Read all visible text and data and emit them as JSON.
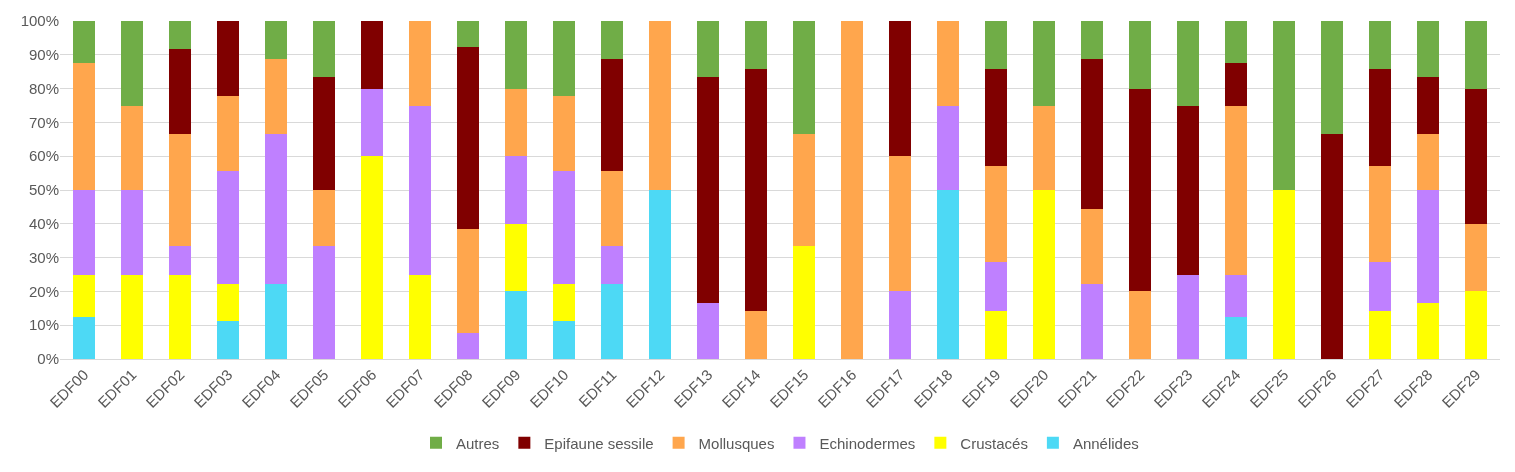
{
  "chart_data": {
    "type": "bar",
    "stacked": true,
    "categories": [
      "EDF00",
      "EDF01",
      "EDF02",
      "EDF03",
      "EDF04",
      "EDF05",
      "EDF06",
      "EDF07",
      "EDF08",
      "EDF09",
      "EDF10",
      "EDF11",
      "EDF12",
      "EDF13",
      "EDF14",
      "EDF15",
      "EDF16",
      "EDF17",
      "EDF18",
      "EDF19",
      "EDF20",
      "EDF21",
      "EDF22",
      "EDF23",
      "EDF24",
      "EDF25",
      "EDF26",
      "EDF27",
      "EDF28",
      "EDF29"
    ],
    "series": [
      {
        "name": "Annélides",
        "color": "#4dd9f5",
        "values": [
          12.5,
          0,
          0,
          11.1,
          22.2,
          0,
          0,
          0,
          0,
          20,
          11.1,
          22.2,
          50,
          0,
          0,
          0,
          0,
          0,
          50,
          0,
          0,
          0,
          0,
          0,
          12.5,
          0,
          0,
          0,
          0,
          0
        ]
      },
      {
        "name": "Crustacés",
        "color": "#ffff00",
        "values": [
          12.5,
          25,
          25,
          11.1,
          0,
          0,
          60,
          25,
          0,
          20,
          11.1,
          0,
          0,
          0,
          0,
          33.3,
          0,
          0,
          0,
          14.3,
          50,
          0,
          0,
          0,
          0,
          50,
          0,
          14.3,
          16.7,
          20
        ]
      },
      {
        "name": "Echinodermes",
        "color": "#bf80ff",
        "values": [
          25,
          25,
          8.3,
          33.3,
          44.4,
          33.3,
          20,
          50,
          7.7,
          20,
          33.3,
          11.1,
          0,
          16.7,
          0,
          0,
          0,
          20,
          25,
          14.3,
          0,
          22.2,
          0,
          25,
          12.5,
          0,
          0,
          14.3,
          33.3,
          0
        ]
      },
      {
        "name": "Mollusques",
        "color": "#ffa64d",
        "values": [
          37.5,
          25,
          33.3,
          22.2,
          22.2,
          16.7,
          0,
          25,
          30.8,
          20,
          22.2,
          22.2,
          50,
          0,
          14.3,
          33.3,
          100,
          40,
          25,
          28.6,
          25,
          22.2,
          20,
          0,
          50,
          0,
          0,
          28.6,
          16.7,
          20
        ]
      },
      {
        "name": "Epifaune sessile",
        "color": "#800000",
        "values": [
          0,
          0,
          25,
          22.2,
          0,
          33.3,
          20,
          0,
          53.8,
          0,
          0,
          33.3,
          0,
          66.7,
          71.4,
          0,
          0,
          40,
          0,
          28.6,
          0,
          44.4,
          60,
          50,
          12.5,
          0,
          66.7,
          28.6,
          16.7,
          40
        ]
      },
      {
        "name": "Autres",
        "color": "#70ad47",
        "values": [
          12.5,
          25,
          8.3,
          0,
          11.1,
          16.7,
          0,
          0,
          7.7,
          20,
          22.2,
          11.1,
          0,
          16.7,
          14.3,
          33.3,
          0,
          0,
          0,
          14.3,
          25,
          11.1,
          20,
          25,
          12.5,
          50,
          33.3,
          14.3,
          16.7,
          20
        ]
      }
    ],
    "ylim": [
      0,
      100
    ],
    "yticks": [
      {
        "value": 0,
        "label": "0%"
      },
      {
        "value": 10,
        "label": "10%"
      },
      {
        "value": 20,
        "label": "20%"
      },
      {
        "value": 30,
        "label": "30%"
      },
      {
        "value": 40,
        "label": "40%"
      },
      {
        "value": 50,
        "label": "50%"
      },
      {
        "value": 60,
        "label": "60%"
      },
      {
        "value": 70,
        "label": "70%"
      },
      {
        "value": 80,
        "label": "80%"
      },
      {
        "value": 90,
        "label": "90%"
      },
      {
        "value": 100,
        "label": "100%"
      }
    ],
    "grid": "y",
    "legend": "bottom"
  }
}
